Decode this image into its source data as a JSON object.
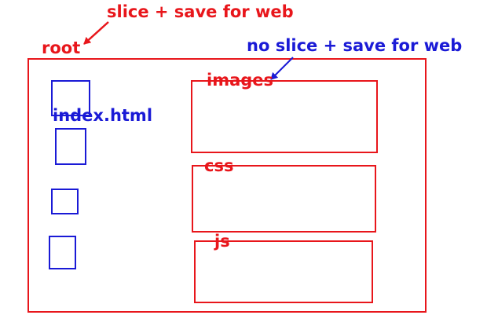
{
  "annotations": {
    "slice_save": "slice + save for web",
    "no_slice_save": "no slice + save for web",
    "root": "root"
  },
  "folders": {
    "images": "images",
    "css": "css",
    "js": "js"
  },
  "files": {
    "index": "index.html"
  },
  "colors": {
    "red": "#e8161b",
    "blue": "#1a1ad6"
  }
}
